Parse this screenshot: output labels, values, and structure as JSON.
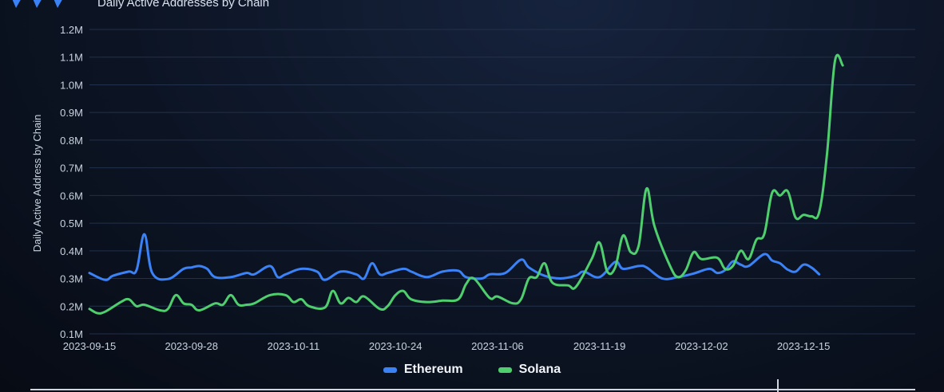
{
  "header": {
    "title": "Daily Active Addresses by Chain",
    "logo_icon": "chevron-logo-icon"
  },
  "colors": {
    "ethereum": "#3b82f6",
    "solana": "#4fce6e",
    "grid": "#223049",
    "background": "#0c1424"
  },
  "chart_data": {
    "type": "line",
    "title": "Daily Active Addresses by Chain",
    "xlabel": "",
    "ylabel": "Daily Active Address by Chain",
    "xlim": [
      "2023-09-15",
      "2023-12-17"
    ],
    "ylim": [
      100000,
      1200000
    ],
    "yticks": [
      100000,
      200000,
      300000,
      400000,
      500000,
      600000,
      700000,
      800000,
      900000,
      1000000,
      1100000,
      1200000
    ],
    "ytick_labels": [
      "0.1M",
      "0.2M",
      "0.3M",
      "0.4M",
      "0.5M",
      "0.6M",
      "0.7M",
      "0.8M",
      "0.9M",
      "1.0M",
      "1.1M",
      "1.2M"
    ],
    "xticks": [
      "2023-09-15",
      "2023-09-28",
      "2023-10-11",
      "2023-10-24",
      "2023-11-06",
      "2023-11-19",
      "2023-12-02",
      "2023-12-15"
    ],
    "grid": true,
    "legend_position": "bottom-center",
    "series": [
      {
        "name": "Ethereum",
        "color": "#3b82f6",
        "points": [
          [
            "2023-09-15",
            320000
          ],
          [
            "2023-09-17",
            295000
          ],
          [
            "2023-09-18",
            310000
          ],
          [
            "2023-09-20",
            325000
          ],
          [
            "2023-09-21",
            330000
          ],
          [
            "2023-09-22",
            460000
          ],
          [
            "2023-09-23",
            320000
          ],
          [
            "2023-09-25",
            298000
          ],
          [
            "2023-09-27",
            335000
          ],
          [
            "2023-09-28",
            340000
          ],
          [
            "2023-09-29",
            345000
          ],
          [
            "2023-09-30",
            335000
          ],
          [
            "2023-10-01",
            305000
          ],
          [
            "2023-10-03",
            305000
          ],
          [
            "2023-10-05",
            320000
          ],
          [
            "2023-10-06",
            315000
          ],
          [
            "2023-10-08",
            345000
          ],
          [
            "2023-10-09",
            305000
          ],
          [
            "2023-10-10",
            315000
          ],
          [
            "2023-10-12",
            335000
          ],
          [
            "2023-10-14",
            325000
          ],
          [
            "2023-10-15",
            295000
          ],
          [
            "2023-10-17",
            325000
          ],
          [
            "2023-10-19",
            315000
          ],
          [
            "2023-10-20",
            300000
          ],
          [
            "2023-10-21",
            355000
          ],
          [
            "2023-10-22",
            315000
          ],
          [
            "2023-10-23",
            320000
          ],
          [
            "2023-10-25",
            335000
          ],
          [
            "2023-10-26",
            325000
          ],
          [
            "2023-10-28",
            305000
          ],
          [
            "2023-10-30",
            325000
          ],
          [
            "2023-11-01",
            328000
          ],
          [
            "2023-11-02",
            305000
          ],
          [
            "2023-11-04",
            300000
          ],
          [
            "2023-11-05",
            315000
          ],
          [
            "2023-11-07",
            320000
          ],
          [
            "2023-11-09",
            368000
          ],
          [
            "2023-11-10",
            340000
          ],
          [
            "2023-11-12",
            310000
          ],
          [
            "2023-11-14",
            300000
          ],
          [
            "2023-11-16",
            310000
          ],
          [
            "2023-11-17",
            325000
          ],
          [
            "2023-11-19",
            305000
          ],
          [
            "2023-11-21",
            360000
          ],
          [
            "2023-11-22",
            335000
          ],
          [
            "2023-11-24",
            345000
          ],
          [
            "2023-11-25",
            340000
          ],
          [
            "2023-11-27",
            300000
          ],
          [
            "2023-11-29",
            305000
          ],
          [
            "2023-12-01",
            318000
          ],
          [
            "2023-12-03",
            335000
          ],
          [
            "2023-12-04",
            320000
          ],
          [
            "2023-12-05",
            330000
          ],
          [
            "2023-12-06",
            362000
          ],
          [
            "2023-12-07",
            350000
          ],
          [
            "2023-12-08",
            345000
          ],
          [
            "2023-12-10",
            388000
          ],
          [
            "2023-12-11",
            365000
          ],
          [
            "2023-12-12",
            355000
          ],
          [
            "2023-12-13",
            332000
          ],
          [
            "2023-12-14",
            325000
          ],
          [
            "2023-12-15",
            350000
          ],
          [
            "2023-12-16",
            340000
          ],
          [
            "2023-12-17",
            315000
          ]
        ]
      },
      {
        "name": "Solana",
        "color": "#4fce6e",
        "points": [
          [
            "2023-09-15",
            190000
          ],
          [
            "2023-09-16",
            175000
          ],
          [
            "2023-09-17",
            180000
          ],
          [
            "2023-09-19",
            215000
          ],
          [
            "2023-09-20",
            225000
          ],
          [
            "2023-09-21",
            200000
          ],
          [
            "2023-09-22",
            205000
          ],
          [
            "2023-09-24",
            185000
          ],
          [
            "2023-09-25",
            190000
          ],
          [
            "2023-09-26",
            240000
          ],
          [
            "2023-09-27",
            210000
          ],
          [
            "2023-09-28",
            205000
          ],
          [
            "2023-09-29",
            185000
          ],
          [
            "2023-10-01",
            210000
          ],
          [
            "2023-10-02",
            205000
          ],
          [
            "2023-10-03",
            240000
          ],
          [
            "2023-10-04",
            205000
          ],
          [
            "2023-10-05",
            205000
          ],
          [
            "2023-10-06",
            210000
          ],
          [
            "2023-10-08",
            240000
          ],
          [
            "2023-10-10",
            240000
          ],
          [
            "2023-10-11",
            215000
          ],
          [
            "2023-10-12",
            225000
          ],
          [
            "2023-10-13",
            200000
          ],
          [
            "2023-10-15",
            195000
          ],
          [
            "2023-10-16",
            255000
          ],
          [
            "2023-10-17",
            210000
          ],
          [
            "2023-10-18",
            230000
          ],
          [
            "2023-10-19",
            215000
          ],
          [
            "2023-10-20",
            235000
          ],
          [
            "2023-10-22",
            190000
          ],
          [
            "2023-10-23",
            200000
          ],
          [
            "2023-10-24",
            240000
          ],
          [
            "2023-10-25",
            255000
          ],
          [
            "2023-10-26",
            225000
          ],
          [
            "2023-10-28",
            215000
          ],
          [
            "2023-10-30",
            220000
          ],
          [
            "2023-11-01",
            225000
          ],
          [
            "2023-11-02",
            280000
          ],
          [
            "2023-11-03",
            300000
          ],
          [
            "2023-11-05",
            230000
          ],
          [
            "2023-11-06",
            235000
          ],
          [
            "2023-11-08",
            210000
          ],
          [
            "2023-11-09",
            225000
          ],
          [
            "2023-11-10",
            300000
          ],
          [
            "2023-11-11",
            305000
          ],
          [
            "2023-11-12",
            355000
          ],
          [
            "2023-11-13",
            285000
          ],
          [
            "2023-11-15",
            275000
          ],
          [
            "2023-11-16",
            270000
          ],
          [
            "2023-11-18",
            370000
          ],
          [
            "2023-11-19",
            430000
          ],
          [
            "2023-11-20",
            325000
          ],
          [
            "2023-11-21",
            340000
          ],
          [
            "2023-11-22",
            455000
          ],
          [
            "2023-11-23",
            395000
          ],
          [
            "2023-11-24",
            420000
          ],
          [
            "2023-11-25",
            625000
          ],
          [
            "2023-11-26",
            490000
          ],
          [
            "2023-11-28",
            345000
          ],
          [
            "2023-11-29",
            305000
          ],
          [
            "2023-11-30",
            330000
          ],
          [
            "2023-12-01",
            395000
          ],
          [
            "2023-12-02",
            370000
          ],
          [
            "2023-12-04",
            375000
          ],
          [
            "2023-12-05",
            335000
          ],
          [
            "2023-12-06",
            345000
          ],
          [
            "2023-12-07",
            400000
          ],
          [
            "2023-12-08",
            370000
          ],
          [
            "2023-12-09",
            440000
          ],
          [
            "2023-12-10",
            460000
          ],
          [
            "2023-12-11",
            610000
          ],
          [
            "2023-12-12",
            600000
          ],
          [
            "2023-12-13",
            615000
          ],
          [
            "2023-12-14",
            520000
          ],
          [
            "2023-12-15",
            530000
          ],
          [
            "2023-12-16",
            525000
          ],
          [
            "2023-12-17",
            540000
          ],
          [
            "2023-12-18",
            750000
          ],
          [
            "2023-12-19",
            1085000
          ],
          [
            "2023-12-20",
            1070000
          ]
        ]
      }
    ]
  }
}
